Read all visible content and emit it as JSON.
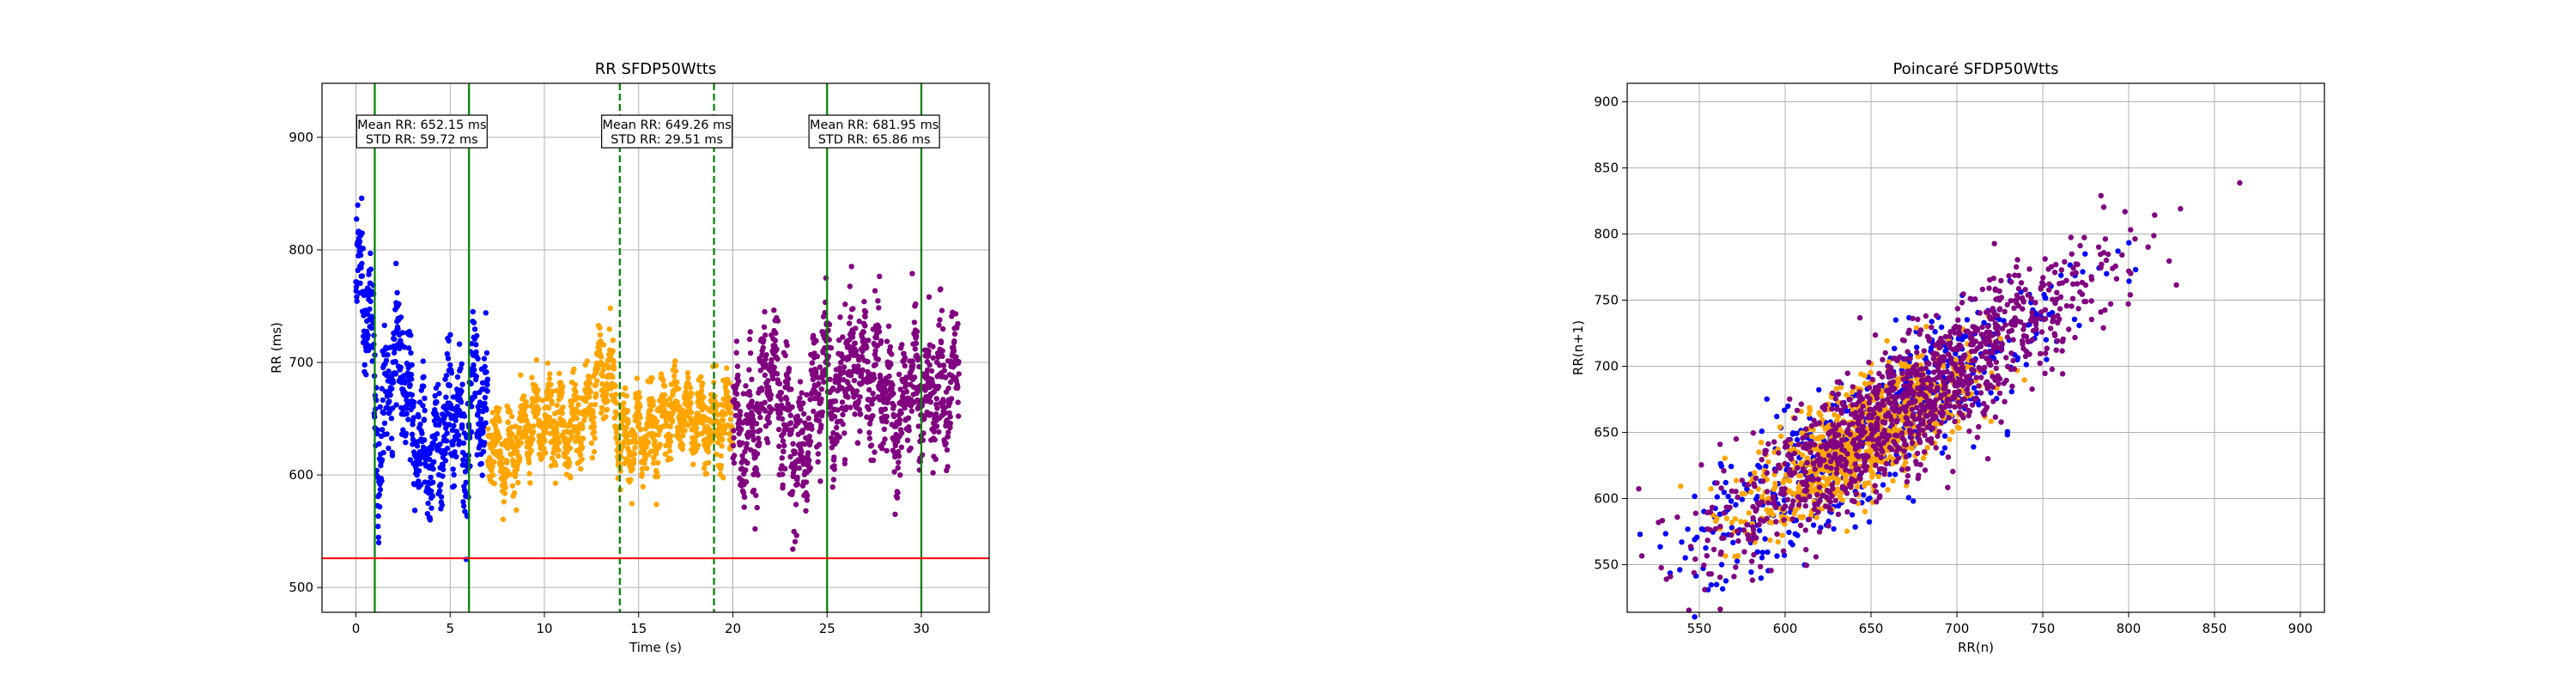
{
  "colors": {
    "blue": "#0000ff",
    "orange": "#ffa500",
    "purple": "#800080",
    "green": "#008000",
    "red": "#ff0000",
    "grid": "#b0b0b0"
  },
  "chart_data": [
    {
      "type": "scatter",
      "title": "RR SFDP50Wtts",
      "xlabel": "Time (s)",
      "ylabel": "RR (ms)",
      "xlim": [
        -1.8,
        33.6
      ],
      "ylim": [
        478,
        948
      ],
      "xticks": [
        0,
        5,
        10,
        15,
        20,
        25,
        30
      ],
      "yticks": [
        500,
        600,
        700,
        800,
        900
      ],
      "grid": true,
      "series": [
        {
          "color": "blue",
          "x_range": [
            0,
            7.0
          ],
          "segments": [
            [
              0.0,
              780
            ],
            [
              0.8,
              735
            ],
            [
              1.2,
              610
            ],
            [
              1.8,
              690
            ],
            [
              2.5,
              705
            ],
            [
              3.0,
              650
            ],
            [
              3.5,
              620
            ],
            [
              4.2,
              625
            ],
            [
              4.8,
              640
            ],
            [
              5.3,
              665
            ],
            [
              5.8,
              610
            ],
            [
              6.2,
              680
            ],
            [
              6.6,
              665
            ],
            [
              7.0,
              640
            ]
          ],
          "spread": 45
        },
        {
          "color": "orange",
          "x_range": [
            7.0,
            20.0
          ],
          "segments": [
            [
              7.0,
              630
            ],
            [
              8.0,
              615
            ],
            [
              9.0,
              640
            ],
            [
              10.0,
              650
            ],
            [
              11.0,
              640
            ],
            [
              12.0,
              650
            ],
            [
              12.8,
              680
            ],
            [
              13.5,
              690
            ],
            [
              14.0,
              625
            ],
            [
              15.0,
              635
            ],
            [
              16.0,
              645
            ],
            [
              17.0,
              660
            ],
            [
              18.0,
              650
            ],
            [
              19.0,
              645
            ],
            [
              20.0,
              655
            ]
          ],
          "spread": 28
        },
        {
          "color": "purple",
          "x_range": [
            20.0,
            32.0
          ],
          "segments": [
            [
              20.0,
              650
            ],
            [
              20.8,
              630
            ],
            [
              21.5,
              660
            ],
            [
              22.0,
              700
            ],
            [
              23.0,
              640
            ],
            [
              23.6,
              610
            ],
            [
              24.5,
              680
            ],
            [
              25.0,
              700
            ],
            [
              25.5,
              640
            ],
            [
              26.0,
              700
            ],
            [
              27.0,
              690
            ],
            [
              28.0,
              680
            ],
            [
              28.8,
              640
            ],
            [
              29.5,
              690
            ],
            [
              30.0,
              660
            ],
            [
              30.7,
              680
            ],
            [
              31.3,
              670
            ],
            [
              32.0,
              700
            ]
          ],
          "spread": 45
        }
      ],
      "vlines": [
        {
          "x": 1.0,
          "color": "green",
          "style": "solid"
        },
        {
          "x": 6.0,
          "color": "green",
          "style": "solid"
        },
        {
          "x": 14.0,
          "color": "green",
          "style": "dashed"
        },
        {
          "x": 19.0,
          "color": "green",
          "style": "dashed"
        },
        {
          "x": 25.0,
          "color": "green",
          "style": "solid"
        },
        {
          "x": 30.0,
          "color": "green",
          "style": "solid"
        }
      ],
      "hlines": [
        {
          "y": 526,
          "color": "red",
          "style": "solid"
        }
      ],
      "annotations": [
        {
          "x": 3.5,
          "y": 893,
          "lines": [
            "Mean RR: 652.15 ms",
            "STD RR: 59.72 ms"
          ]
        },
        {
          "x": 16.5,
          "y": 893,
          "lines": [
            "Mean RR: 649.26 ms",
            "STD RR: 29.51 ms"
          ]
        },
        {
          "x": 27.5,
          "y": 893,
          "lines": [
            "Mean RR: 681.95 ms",
            "STD RR: 65.86 ms"
          ]
        }
      ]
    },
    {
      "type": "scatter",
      "title": "Poincaré SFDP50Wtts",
      "xlabel": "RR(n)",
      "ylabel": "RR(n+1)",
      "xlim": [
        508,
        914
      ],
      "ylim": [
        514,
        914
      ],
      "xticks": [
        550,
        600,
        650,
        700,
        750,
        800,
        850,
        900
      ],
      "yticks": [
        550,
        600,
        650,
        700,
        750,
        800,
        850,
        900
      ],
      "grid": true,
      "series": [
        {
          "color": "blue",
          "center": 655,
          "sd_along": 55,
          "sd_across": 13,
          "range": [
            528,
            860
          ]
        },
        {
          "color": "orange",
          "center": 645,
          "sd_along": 30,
          "sd_across": 11,
          "range": [
            560,
            745
          ]
        },
        {
          "color": "purple",
          "center": 670,
          "sd_along": 55,
          "sd_across": 13,
          "range": [
            528,
            898
          ]
        }
      ]
    }
  ]
}
